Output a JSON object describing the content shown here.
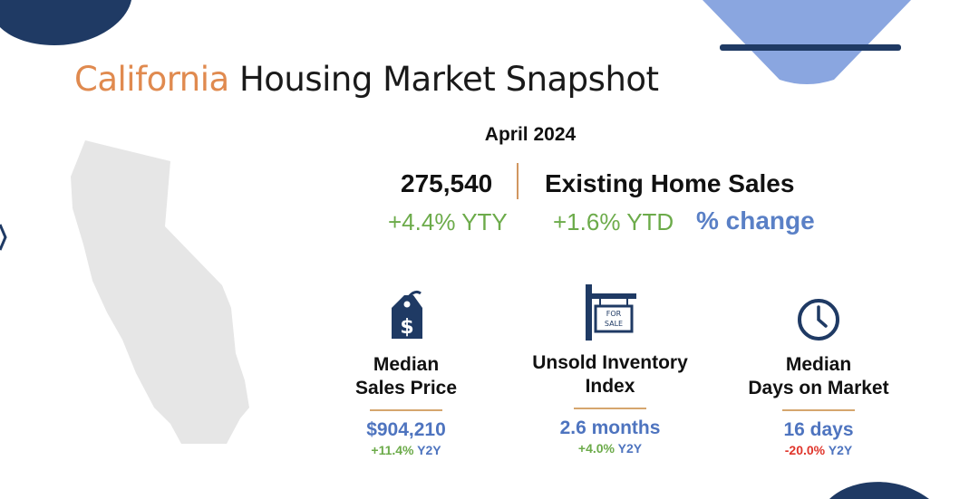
{
  "header": {
    "title_accent": "California",
    "title_rest": " Housing Market Snapshot"
  },
  "period": "April 2024",
  "sales": {
    "value": "275,540",
    "label": "Existing Home Sales",
    "yty": "+4.4% YTY",
    "ytd": "+1.6% YTD",
    "change_label": "% change"
  },
  "metrics": [
    {
      "icon": "price-tag-dollar-icon",
      "label_line1": "Median",
      "label_line2": "Sales Price",
      "value": "$904,210",
      "delta": "+11.4%",
      "delta_suffix": " Y2Y",
      "delta_positive": true
    },
    {
      "icon": "for-sale-sign-icon",
      "label_line1": "Unsold Inventory",
      "label_line2": "Index",
      "value": "2.6 months",
      "delta": "+4.0%",
      "delta_suffix": " Y2Y",
      "delta_positive": true
    },
    {
      "icon": "clock-icon",
      "label_line1": "Median",
      "label_line2": "Days on Market",
      "value": "16 days",
      "delta": "-20.0%",
      "delta_suffix": " Y2Y",
      "delta_positive": false
    }
  ],
  "icon_text": {
    "for_sale": [
      "FOR",
      "SALE"
    ]
  },
  "colors": {
    "accent_orange": "#e08a4f",
    "navy": "#1f3a64",
    "blue": "#4e74bf",
    "green": "#6cab4a",
    "red": "#e0352b",
    "map_gray": "#e6e6e6"
  }
}
